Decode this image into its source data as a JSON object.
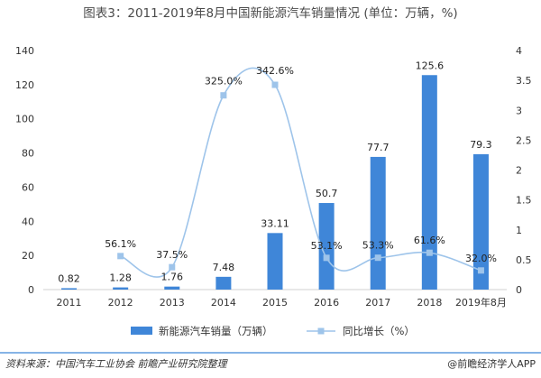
{
  "colors": {
    "bar": "#3f86d8",
    "line": "#9ec4ea",
    "marker": "#9ec4ea",
    "axis": "#d0d0d0",
    "footer_rule": "#3f86d8"
  },
  "chart_data": {
    "type": "bar",
    "title": "图表3：2011-2019年8月中国新能源汽车销量情况 (单位：万辆，%)",
    "categories": [
      "2011",
      "2012",
      "2013",
      "2014",
      "2015",
      "2016",
      "2017",
      "2018",
      "2019年8月"
    ],
    "ylim": [
      0,
      140
    ],
    "y_ticks": [
      "0",
      "20",
      "40",
      "60",
      "80",
      "100",
      "120",
      "140"
    ],
    "y2lim": [
      0,
      4
    ],
    "y2_ticks": [
      "0",
      "0.5",
      "1",
      "1.5",
      "2",
      "2.5",
      "3",
      "3.5",
      "4"
    ],
    "grid": false,
    "legend_position": "bottom",
    "series": [
      {
        "name": "新能源汽车销量（万辆）",
        "kind": "bar",
        "axis": "left",
        "values": [
          0.82,
          1.28,
          1.76,
          7.48,
          33.11,
          50.7,
          77.7,
          125.6,
          79.3
        ],
        "labels": [
          "0.82",
          "1.28",
          "1.76",
          "7.48",
          "33.11",
          "50.7",
          "77.7",
          "125.6",
          "79.3"
        ]
      },
      {
        "name": "同比增长（%）",
        "kind": "line",
        "axis": "right",
        "values": [
          null,
          0.561,
          0.375,
          3.25,
          3.426,
          0.531,
          0.533,
          0.616,
          0.32
        ],
        "labels": [
          "",
          "56.1%",
          "37.5%",
          "325.0%",
          "342.6%",
          "53.1%",
          "53.3%",
          "61.6%",
          "32.0%"
        ]
      }
    ]
  },
  "footer": {
    "source": "资料来源：中国汽车工业协会 前瞻产业研究院整理",
    "credit": "@前瞻经济学人APP"
  }
}
